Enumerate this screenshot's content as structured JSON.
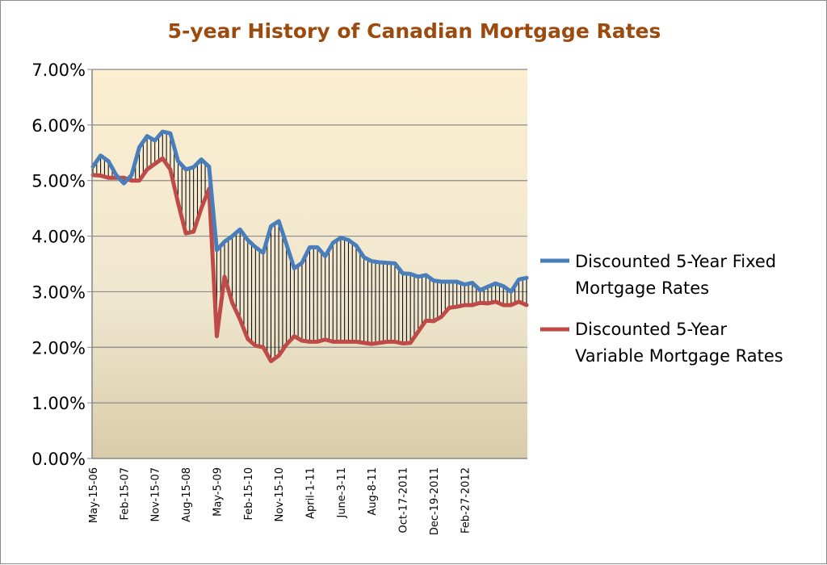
{
  "chart_data": {
    "type": "line",
    "title": "5-year History of Canadian Mortgage Rates",
    "xlabel": "",
    "ylabel": "",
    "ylim": [
      0,
      7
    ],
    "y_ticks": [
      "0.00%",
      "1.00%",
      "2.00%",
      "3.00%",
      "4.00%",
      "5.00%",
      "6.00%",
      "7.00%"
    ],
    "y_tick_values": [
      0,
      1,
      2,
      3,
      4,
      5,
      6,
      7
    ],
    "x_tick_labels": [
      "May-15-06",
      "Feb-15-07",
      "Nov-15-07",
      "Aug-15-08",
      "May-5-09",
      "Feb-15-10",
      "Nov-15-10",
      "April-1-11",
      "June-3-11",
      "Aug-8-11",
      "Oct-17-2011",
      "Dec-19-2011",
      "Feb-27-2012"
    ],
    "x_tick_every": 4,
    "grid": "horizontal",
    "legend_position": "right",
    "drop_lines": true,
    "series": [
      {
        "name": "Discounted 5-Year Fixed Mortgage Rates",
        "color": "#4a7ebb",
        "values": [
          5.25,
          5.45,
          5.35,
          5.1,
          4.95,
          5.1,
          5.6,
          5.8,
          5.72,
          5.88,
          5.85,
          5.35,
          5.2,
          5.24,
          5.38,
          5.25,
          3.75,
          3.9,
          4.0,
          4.12,
          3.93,
          3.8,
          3.7,
          4.18,
          4.27,
          3.85,
          3.42,
          3.52,
          3.8,
          3.8,
          3.64,
          3.88,
          3.97,
          3.93,
          3.83,
          3.62,
          3.55,
          3.53,
          3.52,
          3.51,
          3.33,
          3.32,
          3.27,
          3.3,
          3.2,
          3.18,
          3.18,
          3.18,
          3.13,
          3.16,
          3.03,
          3.09,
          3.15,
          3.1,
          3.0,
          3.22,
          3.25
        ]
      },
      {
        "name": "Discounted 5-Year Variable Mortgage Rates",
        "color": "#be4b48",
        "values": [
          5.1,
          5.09,
          5.05,
          5.05,
          5.05,
          5.0,
          5.0,
          5.2,
          5.3,
          5.4,
          5.2,
          4.6,
          4.05,
          4.08,
          4.5,
          4.85,
          2.2,
          3.27,
          2.8,
          2.5,
          2.15,
          2.03,
          2.0,
          1.75,
          1.85,
          2.05,
          2.2,
          2.12,
          2.1,
          2.1,
          2.14,
          2.1,
          2.1,
          2.1,
          2.1,
          2.08,
          2.06,
          2.08,
          2.1,
          2.1,
          2.07,
          2.08,
          2.28,
          2.48,
          2.47,
          2.55,
          2.71,
          2.73,
          2.76,
          2.76,
          2.8,
          2.79,
          2.82,
          2.76,
          2.76,
          2.82,
          2.76
        ]
      }
    ],
    "legend": {
      "fixed_line1": "Discounted 5-Year Fixed",
      "fixed_line2": "Mortgage Rates",
      "variable_line1": "Discounted 5-Year",
      "variable_line2": "Variable Mortgage Rates"
    }
  }
}
